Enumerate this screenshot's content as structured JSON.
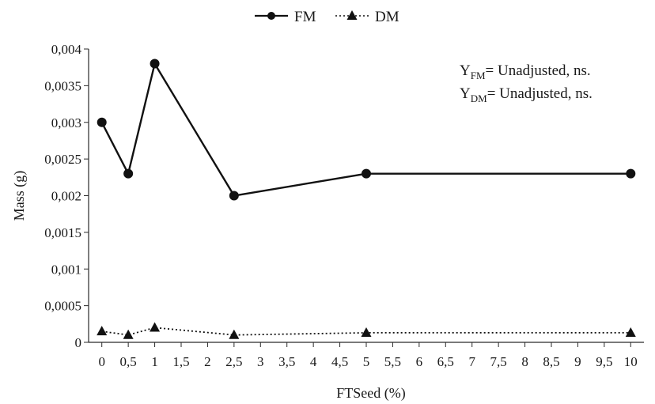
{
  "chart_data": {
    "type": "line",
    "xlabel": "FTSeed (%)",
    "ylabel": "Mass (g)",
    "x_ticks": [
      "0",
      "0,5",
      "1",
      "1,5",
      "2",
      "2,5",
      "3",
      "3,5",
      "4",
      "4,5",
      "5",
      "5,5",
      "6",
      "6,5",
      "7",
      "7,5",
      "8",
      "8,5",
      "9",
      "9,5",
      "10"
    ],
    "y_ticks": [
      "0",
      "0,0005",
      "0,001",
      "0,0015",
      "0,002",
      "0,0025",
      "0,003",
      "0,0035",
      "0,004"
    ],
    "xlim": [
      0,
      10
    ],
    "ylim": [
      0,
      0.004
    ],
    "grid": false,
    "legend_position": "top-center",
    "series": [
      {
        "name": "FM",
        "marker": "circle",
        "line_style": "solid",
        "color": "#111111",
        "x": [
          0,
          0.5,
          1,
          2.5,
          5,
          10
        ],
        "y": [
          0.003,
          0.0023,
          0.0038,
          0.002,
          0.0023,
          0.0023
        ]
      },
      {
        "name": "DM",
        "marker": "triangle",
        "line_style": "dotted",
        "color": "#111111",
        "x": [
          0,
          0.5,
          1,
          2.5,
          5,
          10
        ],
        "y": [
          0.00015,
          0.0001,
          0.0002,
          0.0001,
          0.00013,
          0.00013
        ]
      }
    ],
    "annotations": [
      {
        "main": "Y",
        "sub": "FM",
        "rest": "= Unadjusted, ns."
      },
      {
        "main": "Y",
        "sub": "DM",
        "rest": "= Unadjusted, ns."
      }
    ]
  }
}
